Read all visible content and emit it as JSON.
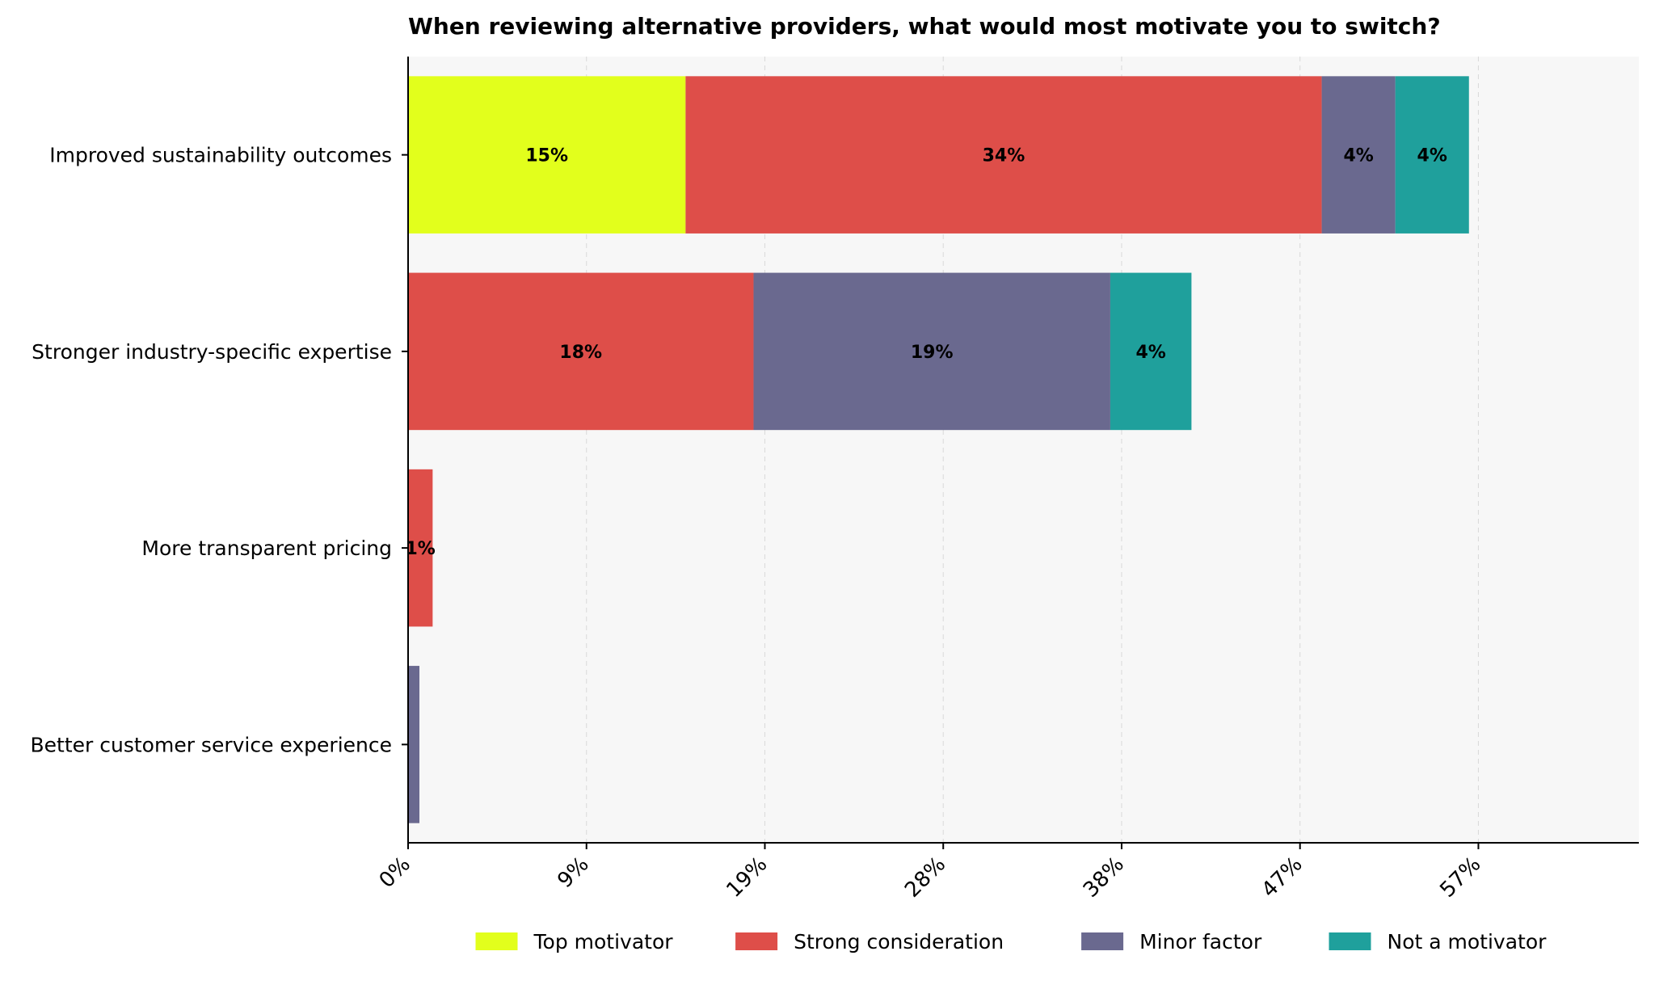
{
  "chart_data": {
    "type": "bar",
    "orientation": "horizontal",
    "stacked": true,
    "title": "When reviewing alternative providers, what would most motivate you to switch?",
    "xlabel": "",
    "ylabel": "",
    "xlim": [
      0,
      65.2
    ],
    "x_tick_values": [
      0,
      9.45,
      18.9,
      28.35,
      37.8,
      47.25,
      56.7
    ],
    "x_tick_labels": [
      "0%",
      "9%",
      "19%",
      "28%",
      "38%",
      "47%",
      "57%"
    ],
    "grid": "vertical dashed",
    "legend_position": "bottom",
    "categories": [
      "Improved sustainability outcomes",
      "Stronger industry-specific expertise",
      "More transparent pricing",
      "Better customer service experience"
    ],
    "series": [
      {
        "name": "Top motivator",
        "color": "#e2ff1c",
        "values": [
          14.7,
          0,
          0,
          0
        ],
        "labels": [
          "15%",
          "",
          "",
          ""
        ]
      },
      {
        "name": "Strong consideration",
        "color": "#de4e49",
        "values": [
          33.7,
          18.3,
          1.3,
          0
        ],
        "labels": [
          "34%",
          "18%",
          "1%",
          ""
        ]
      },
      {
        "name": "Minor factor",
        "color": "#6a698f",
        "values": [
          3.9,
          18.9,
          0,
          0.6
        ],
        "labels": [
          "4%",
          "19%",
          "",
          ""
        ]
      },
      {
        "name": "Not a motivator",
        "color": "#1fa09c",
        "values": [
          3.9,
          4.3,
          0,
          0
        ],
        "labels": [
          "4%",
          "4%",
          "",
          ""
        ]
      }
    ]
  }
}
